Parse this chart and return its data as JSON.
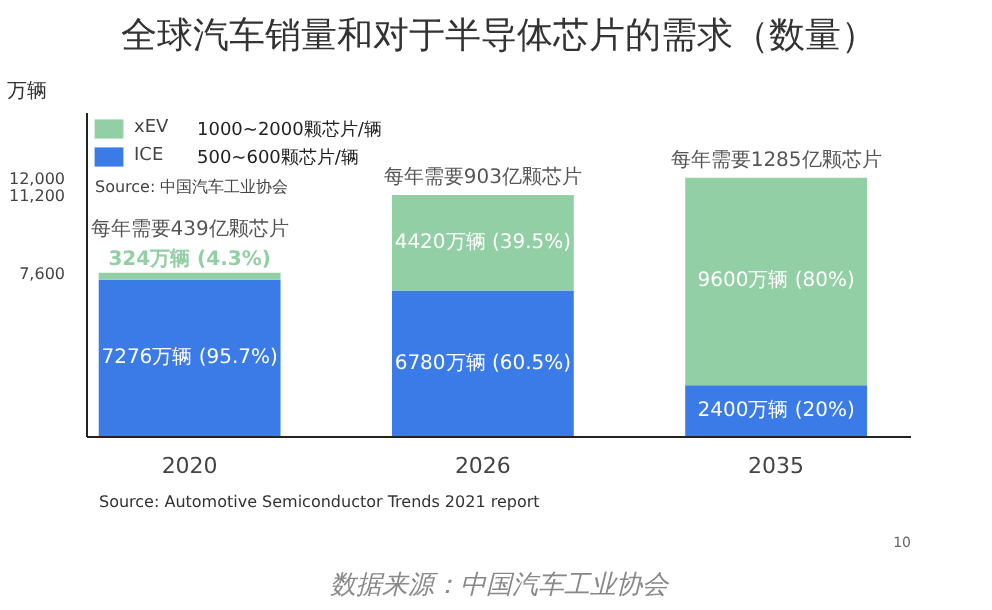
{
  "chart_data": {
    "type": "bar",
    "title": "全球汽车销量和对于半导体芯片的需求（数量）",
    "ylabel": "万辆",
    "categories": [
      "2020",
      "2026",
      "2035"
    ],
    "stacked": true,
    "series": [
      {
        "name": "ICE",
        "color": "#3b7be8",
        "values": [
          7276,
          6780,
          2400
        ],
        "value_labels": [
          "7276万辆 (95.7%)",
          "6780万辆 (60.5%)",
          "2400万辆 (20%)"
        ]
      },
      {
        "name": "xEV",
        "color": "#93cfa5",
        "values": [
          324,
          4420,
          9600
        ],
        "value_labels": [
          "324万辆 (4.3%)",
          "4420万辆 (39.5%)",
          "9600万辆 (80%)"
        ]
      }
    ],
    "ylim": [
      0,
      15000
    ],
    "yticks": [
      {
        "value": 7600,
        "label": "7,600"
      },
      {
        "value": 11200,
        "label": "11,200"
      },
      {
        "value": 12000,
        "label": "12,000"
      }
    ],
    "grid": false,
    "legend": "top left",
    "annotations": [
      {
        "text": "每年需要439亿颗芯片",
        "x": "2020",
        "y": 7600
      },
      {
        "text": "每年需要903亿颗芯片",
        "x": "2026",
        "y": 11200
      },
      {
        "text": "每年需要1285亿颗芯片",
        "x": "2035",
        "y": 12000
      },
      "1000~2000颗芯片/辆",
      "500~600颗芯片/辆",
      "Source: 中国汽车工业协会",
      "Source: Automotive Semiconductor Trends 2021 report",
      "10",
      "数据来源：中国汽车工业协会"
    ]
  }
}
